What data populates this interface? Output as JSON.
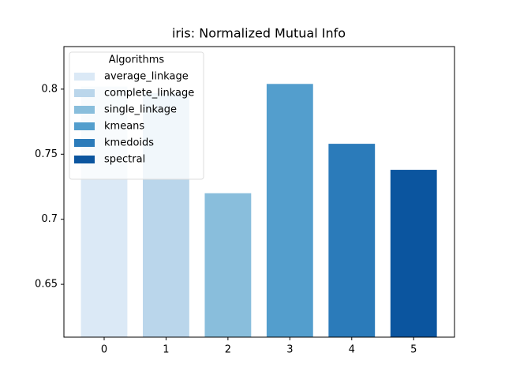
{
  "chart_data": {
    "type": "bar",
    "title": "iris: Normalized Mutual Info",
    "legend_title": "Algorithms",
    "legend": "upper left",
    "series": [
      {
        "name": "average_linkage",
        "color": "#dbe9f6",
        "x": [
          0
        ],
        "values": [
          0.802
        ]
      },
      {
        "name": "complete_linkage",
        "color": "#bad6eb",
        "x": [
          1
        ],
        "values": [
          0.797
        ]
      },
      {
        "name": "single_linkage",
        "color": "#89bedc",
        "x": [
          2
        ],
        "values": [
          0.72
        ]
      },
      {
        "name": "kmeans",
        "color": "#539ecd",
        "x": [
          3
        ],
        "values": [
          0.804
        ]
      },
      {
        "name": "kmedoids",
        "color": "#2b7bba",
        "x": [
          4
        ],
        "values": [
          0.758
        ]
      },
      {
        "name": "spectral",
        "color": "#0b559f",
        "x": [
          5
        ],
        "values": [
          0.738
        ]
      }
    ],
    "xlim": [
      -0.65,
      5.66
    ],
    "xticks": [
      0,
      1,
      2,
      3,
      4,
      5
    ],
    "ylim": [
      0.6094,
      0.8327
    ],
    "yticks": [
      0.65,
      0.7,
      0.75,
      0.8
    ]
  }
}
